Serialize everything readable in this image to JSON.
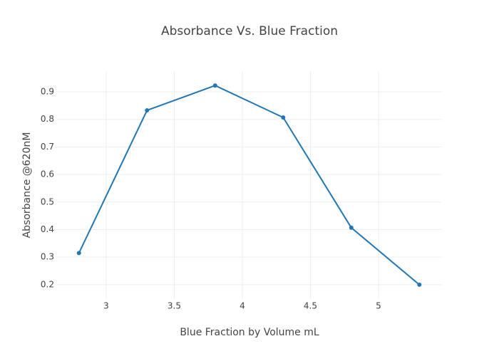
{
  "chart_data": {
    "type": "line",
    "title": "Absorbance Vs. Blue Fraction",
    "x_label": "Blue Fraction by Volume mL",
    "y_label": "Absorbance @620nM",
    "x": [
      2.8,
      3.3,
      3.8,
      4.3,
      4.8,
      5.3
    ],
    "series": [
      {
        "color": "#1f77b4",
        "values": [
          0.315,
          0.833,
          0.923,
          0.807,
          0.407,
          0.2
        ]
      }
    ],
    "xlim": [
      2.639,
      5.466
    ],
    "xticks": [
      3,
      3.5,
      4,
      4.5,
      5
    ],
    "ylim": [
      0.148,
      0.975
    ],
    "yticks": [
      0.2,
      0.3,
      0.4,
      0.5,
      0.6,
      0.7,
      0.8,
      0.9
    ],
    "grid": true,
    "markers": true
  }
}
